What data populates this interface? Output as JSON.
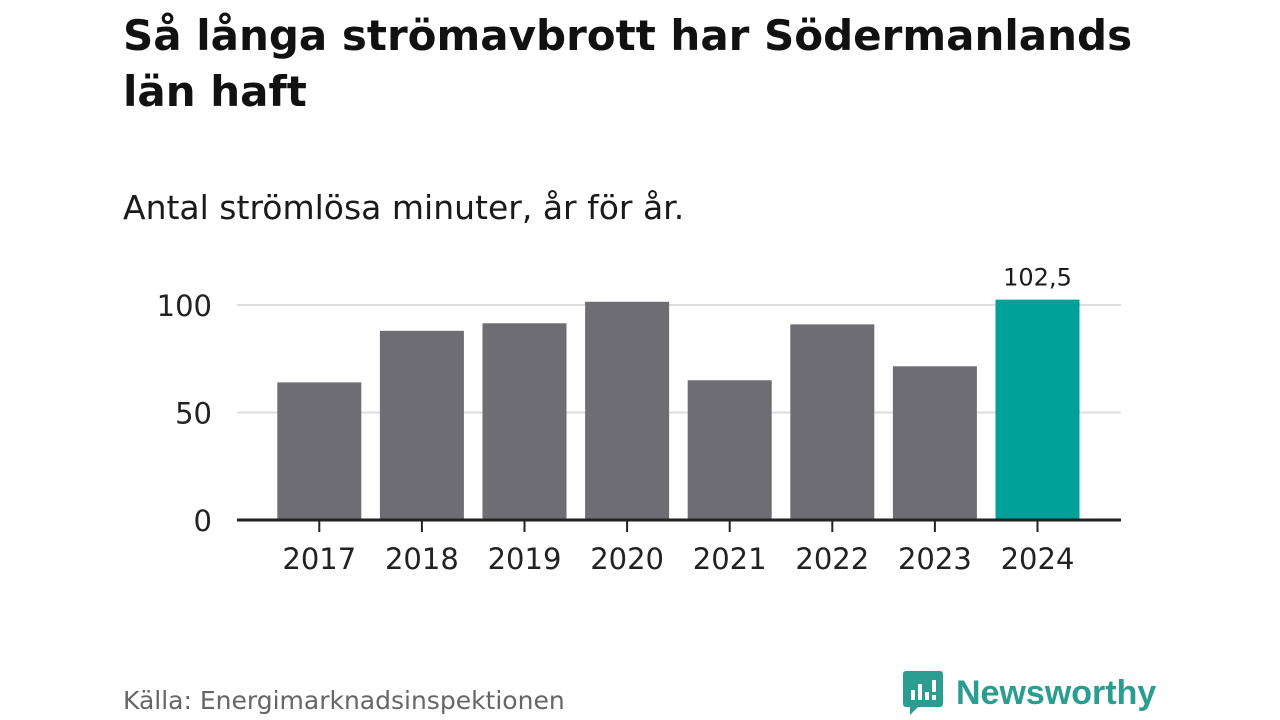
{
  "title": "Så långa strömavbrott har Södermanlands län haft",
  "subtitle": "Antal strömlösa minuter, år för år.",
  "source": "Källa: Energimarknadsinspektionen",
  "brand": {
    "name": "Newsworthy",
    "icon": "newsworthy-logo-icon",
    "color": "#2a9d90"
  },
  "colors": {
    "bar": "#6e6d73",
    "highlight": "#00a199",
    "grid": "#dddddd",
    "axis": "#222222"
  },
  "chart_data": {
    "type": "bar",
    "title": "Så långa strömavbrott har Södermanlands län haft",
    "subtitle": "Antal strömlösa minuter, år för år.",
    "xlabel": "",
    "ylabel": "",
    "categories": [
      "2017",
      "2018",
      "2019",
      "2020",
      "2021",
      "2022",
      "2023",
      "2024"
    ],
    "values": [
      64,
      88,
      91.5,
      101.5,
      65,
      91,
      71.5,
      102.5
    ],
    "highlight_index": 7,
    "highlight_label": "102,5",
    "yticks": [
      0,
      50,
      100
    ],
    "ylim": [
      0,
      102.5
    ],
    "grid": true
  }
}
